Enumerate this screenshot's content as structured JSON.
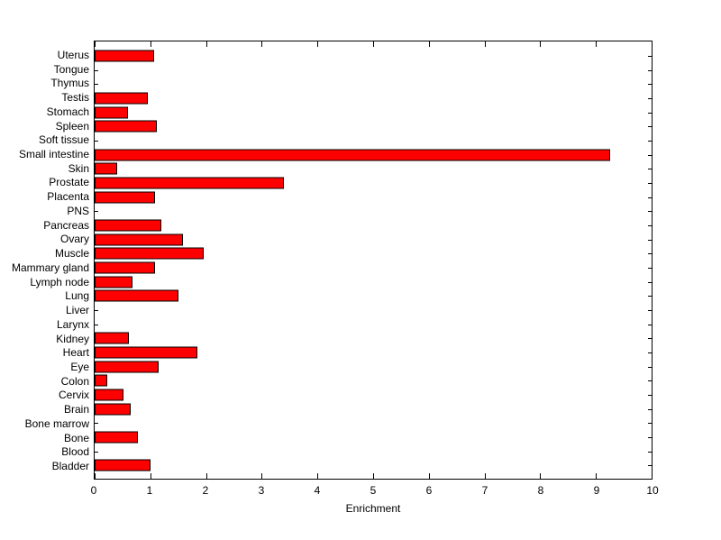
{
  "chart_data": {
    "type": "bar",
    "orientation": "horizontal",
    "title": "",
    "xlabel": "Enrichment",
    "ylabel": "",
    "xlim": [
      0,
      10
    ],
    "xticks": [
      0,
      1,
      2,
      3,
      4,
      5,
      6,
      7,
      8,
      9,
      10
    ],
    "grid": false,
    "legend": null,
    "bar_color": "#FF0000",
    "bar_edge_color": "#000000",
    "axis_color": "#000000",
    "background_color": "#FFFFFF",
    "categories": [
      "Uterus",
      "Tongue",
      "Thymus",
      "Testis",
      "Stomach",
      "Spleen",
      "Soft tissue",
      "Small intestine",
      "Skin",
      "Prostate",
      "Placenta",
      "PNS",
      "Pancreas",
      "Ovary",
      "Muscle",
      "Mammary gland",
      "Lymph node",
      "Lung",
      "Liver",
      "Larynx",
      "Kidney",
      "Heart",
      "Eye",
      "Colon",
      "Cervix",
      "Brain",
      "Bone marrow",
      "Bone",
      "Blood",
      "Bladder"
    ],
    "values": [
      1.07,
      0,
      0,
      0.95,
      0.6,
      1.12,
      0,
      9.25,
      0.4,
      3.4,
      1.09,
      0,
      1.2,
      1.58,
      1.95,
      1.09,
      0.68,
      1.5,
      0,
      0,
      0.62,
      1.85,
      1.15,
      0.22,
      0.52,
      0.65,
      0,
      0.77,
      0,
      1.0
    ]
  }
}
